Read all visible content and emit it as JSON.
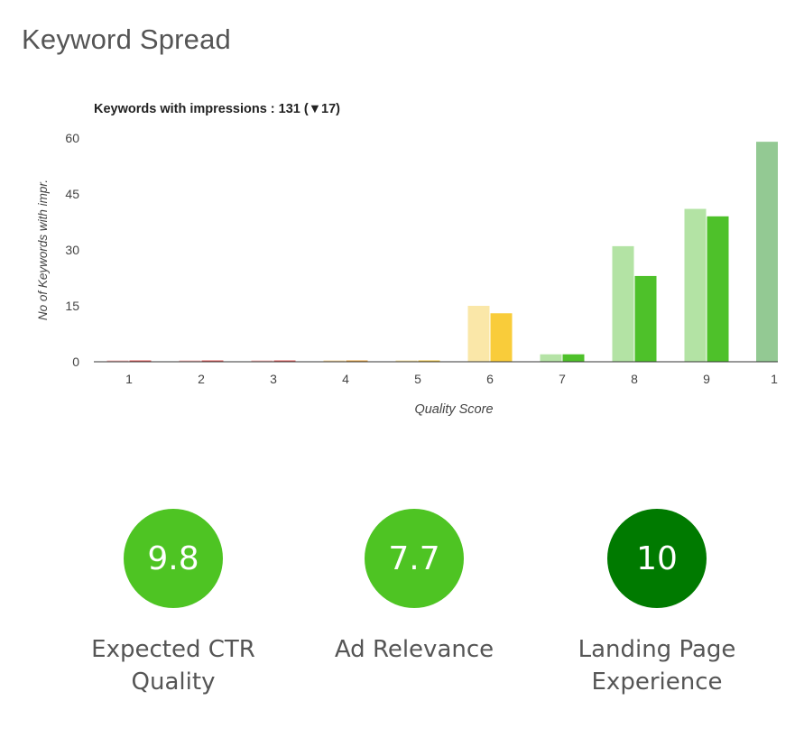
{
  "page": {
    "title": "Keyword Spread"
  },
  "chart_data": {
    "type": "bar",
    "title": "Keywords with impressions : 131 (▼17)",
    "xlabel": "Quality Score",
    "ylabel": "No of Keywords with impr.",
    "ylim": [
      0,
      60
    ],
    "yticks": [
      0,
      15,
      30,
      45,
      60
    ],
    "categories": [
      "1",
      "2",
      "3",
      "4",
      "5",
      "6",
      "7",
      "8",
      "9",
      "1"
    ],
    "series": [
      {
        "values": [
          0,
          0,
          0,
          0,
          0,
          15,
          2,
          31,
          41,
          59
        ],
        "colors": [
          "#f4b7b7",
          "#f4b7b7",
          "#f4b7b7",
          "#f7d9a0",
          "#f7e3a6",
          "#fae7a8",
          "#b5e3a6",
          "#b3e3a4",
          "#b3e3a4",
          "#93c993"
        ]
      },
      {
        "values": [
          0,
          0,
          0,
          0,
          0,
          13,
          2,
          23,
          39,
          null
        ],
        "colors": [
          "#e05a5a",
          "#e05a5a",
          "#e05a5a",
          "#e8a13a",
          "#eec13a",
          "#f9cc3a",
          "#4ec12a",
          "#4ec12a",
          "#4ec12a",
          null
        ]
      }
    ],
    "grid": false,
    "legend": "none"
  },
  "gauges": [
    {
      "value": "9.8",
      "label_line1": "Expected CTR",
      "label_line2": "Quality",
      "color": "#4ec423"
    },
    {
      "value": "7.7",
      "label_line1": "Ad Relevance",
      "label_line2": "",
      "color": "#4ec423"
    },
    {
      "value": "10",
      "label_line1": "Landing Page",
      "label_line2": "Experience",
      "color": "#007a00"
    }
  ]
}
